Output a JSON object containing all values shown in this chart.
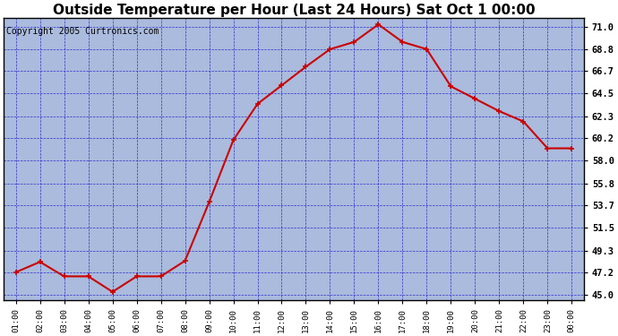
{
  "title": "Outside Temperature per Hour (Last 24 Hours) Sat Oct 1 00:00",
  "copyright": "Copyright 2005 Curtronics.com",
  "x_labels": [
    "01:00",
    "02:00",
    "03:00",
    "04:00",
    "05:00",
    "06:00",
    "07:00",
    "08:00",
    "09:00",
    "10:00",
    "11:00",
    "12:00",
    "13:00",
    "14:00",
    "15:00",
    "16:00",
    "17:00",
    "18:00",
    "19:00",
    "20:00",
    "21:00",
    "22:00",
    "23:00",
    "00:00"
  ],
  "y_values": [
    47.2,
    48.2,
    46.8,
    46.8,
    45.3,
    46.8,
    46.8,
    48.3,
    54.0,
    60.0,
    63.5,
    65.3,
    67.1,
    68.8,
    69.5,
    71.2,
    69.5,
    68.8,
    65.2,
    64.0,
    62.8,
    61.8,
    59.2,
    59.2
  ],
  "line_color": "#cc0000",
  "marker_color": "#cc0000",
  "fig_bg_color": "#ffffff",
  "plot_bg_color": "#aabbdd",
  "grid_color": "#2222cc",
  "border_color": "#000000",
  "title_fontsize": 11,
  "copyright_fontsize": 7,
  "ytick_labels": [
    "45.0",
    "47.2",
    "49.3",
    "51.5",
    "53.7",
    "55.8",
    "58.0",
    "60.2",
    "62.3",
    "64.5",
    "66.7",
    "68.8",
    "71.0"
  ],
  "ytick_values": [
    45.0,
    47.2,
    49.3,
    51.5,
    53.7,
    55.8,
    58.0,
    60.2,
    62.3,
    64.5,
    66.7,
    68.8,
    71.0
  ],
  "ylim": [
    44.5,
    71.8
  ],
  "tick_label_color": "#000000"
}
